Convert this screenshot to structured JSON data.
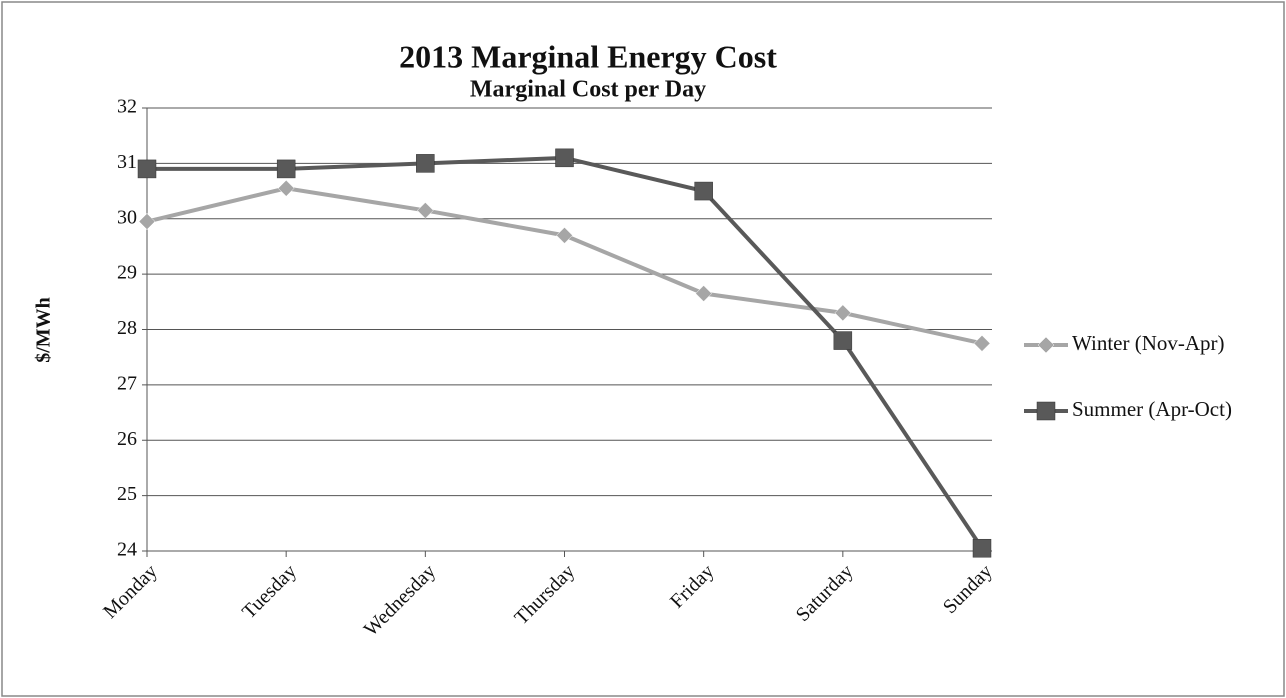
{
  "chart_data": {
    "type": "line",
    "title": "2013 Marginal Energy Cost",
    "subtitle": "Marginal Cost per Day",
    "y_label": "$/MWh",
    "categories": [
      "Monday",
      "Tuesday",
      "Wednesday",
      "Thursday",
      "Friday",
      "Saturday",
      "Sunday"
    ],
    "series": [
      {
        "name": "Winter (Nov-Apr)",
        "color": "#a6a6a6",
        "marker": "diamond",
        "values": [
          29.95,
          30.55,
          30.15,
          29.7,
          28.65,
          28.3,
          27.75
        ]
      },
      {
        "name": "Summer (Apr-Oct)",
        "color": "#595959",
        "marker": "square",
        "values": [
          30.9,
          30.9,
          31.0,
          31.1,
          30.5,
          27.8,
          24.05
        ]
      }
    ],
    "ylim": [
      24,
      32
    ],
    "yticks": [
      24,
      25,
      26,
      27,
      28,
      29,
      30,
      31,
      32
    ],
    "grid": true,
    "legend": "right"
  }
}
